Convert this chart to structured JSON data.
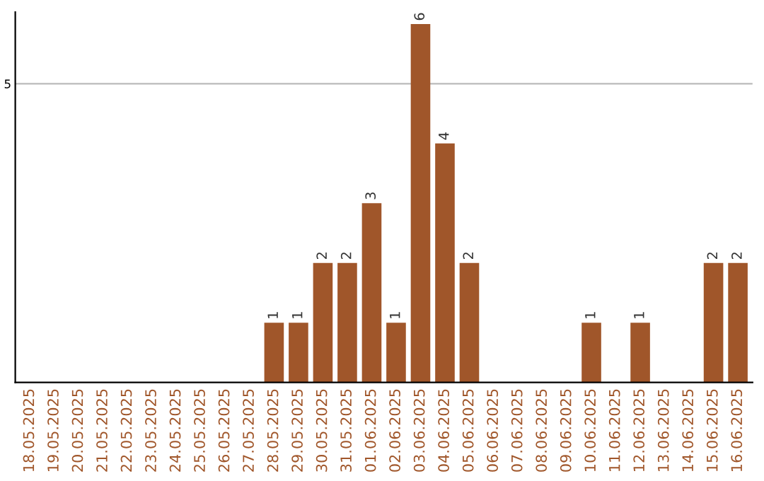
{
  "chart_data": {
    "type": "bar",
    "categories": [
      "18.05.2025",
      "19.05.2025",
      "20.05.2025",
      "21.05.2025",
      "22.05.2025",
      "23.05.2025",
      "24.05.2025",
      "25.05.2025",
      "26.05.2025",
      "27.05.2025",
      "28.05.2025",
      "29.05.2025",
      "30.05.2025",
      "31.05.2025",
      "01.06.2025",
      "02.06.2025",
      "03.06.2025",
      "04.06.2025",
      "05.06.2025",
      "06.06.2025",
      "07.06.2025",
      "08.06.2025",
      "09.06.2025",
      "10.06.2025",
      "11.06.2025",
      "12.06.2025",
      "13.06.2025",
      "14.06.2025",
      "15.06.2025",
      "16.06.2025"
    ],
    "values": [
      0,
      0,
      0,
      0,
      0,
      0,
      0,
      0,
      0,
      0,
      1,
      1,
      2,
      2,
      3,
      1,
      6,
      4,
      2,
      0,
      0,
      0,
      0,
      1,
      0,
      1,
      0,
      0,
      2,
      2
    ],
    "value_labels": [
      null,
      null,
      null,
      null,
      null,
      null,
      null,
      null,
      null,
      null,
      "1",
      "1",
      "2",
      "2",
      "3",
      "1",
      "6",
      "4",
      "2",
      null,
      null,
      null,
      null,
      "1",
      null,
      "1",
      null,
      null,
      "2",
      "2"
    ],
    "color": "#a0562a",
    "ylim": [
      0,
      6.2
    ],
    "yticks": [
      5
    ],
    "grid": "y"
  }
}
